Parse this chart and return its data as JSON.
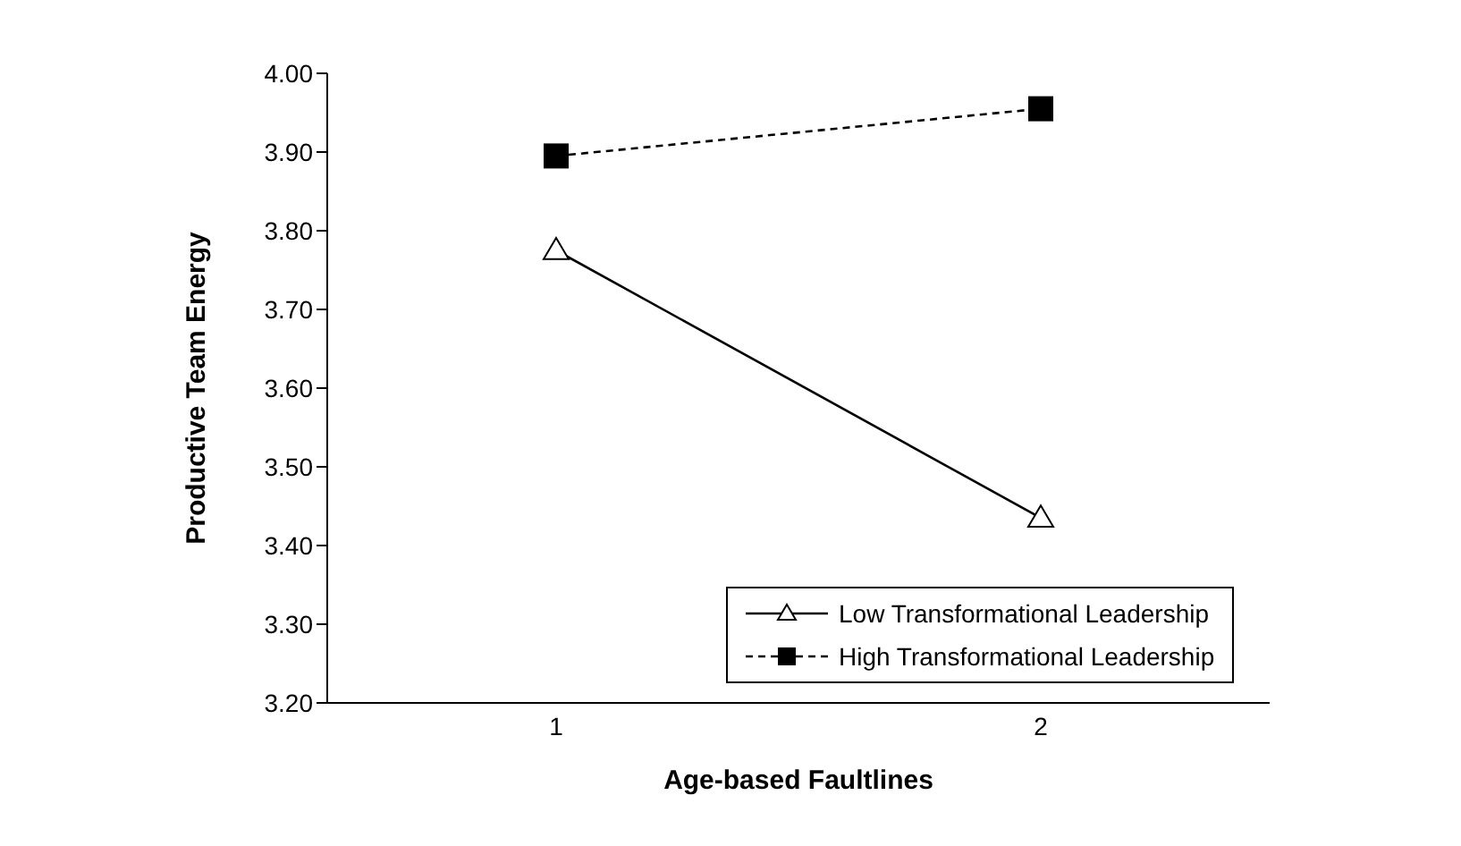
{
  "chart_data": {
    "type": "line",
    "xlabel": "Age-based Faultlines",
    "ylabel": "Productive Team Energy",
    "categories": [
      "1",
      "2"
    ],
    "series": [
      {
        "name": "Low Transformational Leadership",
        "color": "#000000",
        "values": [
          3.775,
          3.435
        ],
        "marker": "triangle",
        "line_style": "solid"
      },
      {
        "name": "High Transformational Leadership",
        "color": "#000000",
        "values": [
          3.895,
          3.955
        ],
        "marker": "square",
        "line_style": "dashed"
      }
    ],
    "ylim": [
      3.2,
      4.0
    ],
    "yticks": [
      {
        "value": 3.2,
        "label": "3.20"
      },
      {
        "value": 3.3,
        "label": "3.30"
      },
      {
        "value": 3.4,
        "label": "3.40"
      },
      {
        "value": 3.5,
        "label": "3.50"
      },
      {
        "value": 3.6,
        "label": "3.60"
      },
      {
        "value": 3.7,
        "label": "3.70"
      },
      {
        "value": 3.8,
        "label": "3.80"
      },
      {
        "value": 3.9,
        "label": "3.90"
      },
      {
        "value": 4.0,
        "label": "4.00"
      }
    ],
    "grid": false,
    "legend": "bottom right"
  }
}
